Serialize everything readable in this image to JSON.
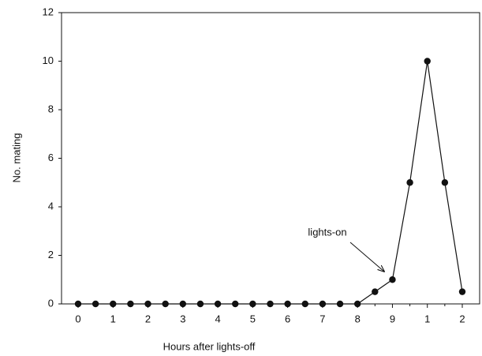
{
  "chart_data": {
    "type": "line",
    "xlabel": "Hours after lights-off",
    "ylabel": "No. mating",
    "categories": [
      "0",
      null,
      "1",
      null,
      "2",
      null,
      "3",
      null,
      "4",
      null,
      "5",
      null,
      "6",
      null,
      "7",
      null,
      "8",
      null,
      "9",
      null,
      "1",
      null,
      "2"
    ],
    "values": [
      0,
      0,
      0,
      0,
      0,
      0,
      0,
      0,
      0,
      0,
      0,
      0,
      0,
      0,
      0,
      0,
      0,
      0.5,
      1,
      5,
      10,
      5,
      0.5
    ],
    "color": "#111111",
    "ylim": [
      0,
      12
    ],
    "yticks": [
      0,
      2,
      4,
      6,
      8,
      10,
      12
    ],
    "annotation": "lights-on"
  }
}
